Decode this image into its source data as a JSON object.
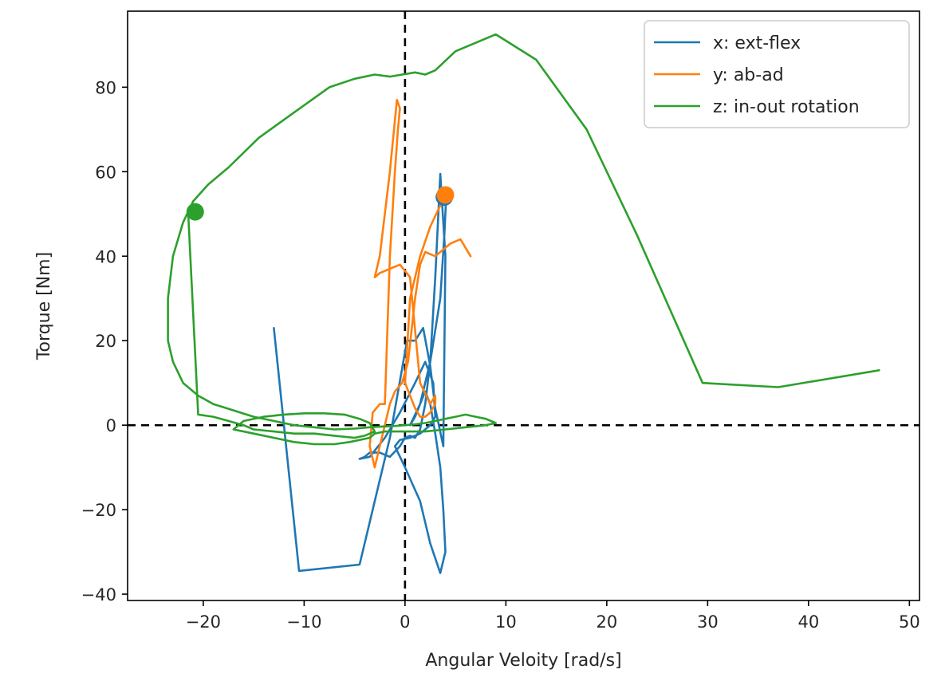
{
  "chart_data": {
    "type": "line",
    "title": "",
    "xlabel": "Angular Veloity [rad/s]",
    "ylabel": "Torque [Nm]",
    "xlim": [
      -27.5,
      51.0
    ],
    "ylim": [
      -41.5,
      98.0
    ],
    "xticks": [
      -20,
      -10,
      0,
      10,
      20,
      30,
      40,
      50
    ],
    "yticks": [
      -40,
      -20,
      0,
      20,
      40,
      60,
      80
    ],
    "xtick_labels": [
      "−20",
      "−10",
      "0",
      "10",
      "20",
      "30",
      "40",
      "50"
    ],
    "ytick_labels": [
      "−40",
      "−20",
      "0",
      "20",
      "40",
      "60",
      "80"
    ],
    "grid": false,
    "legend_position": "top-right",
    "reference_lines": [
      {
        "orientation": "horizontal",
        "value": 0,
        "style": "dashed",
        "color": "#000000"
      },
      {
        "orientation": "vertical",
        "value": 0,
        "style": "dashed",
        "color": "#000000"
      }
    ],
    "series": [
      {
        "name": "x: ext-flex",
        "color": "#1f77b4",
        "x": [
          -13.0,
          -10.5,
          -4.5,
          -1.5,
          0.2,
          1.0,
          1.8,
          2.5,
          3.0,
          3.8,
          4.0,
          3.5,
          3.0,
          2.5,
          2.0,
          1.5,
          1.0,
          0.5,
          0.0,
          -0.5,
          -1.5,
          -2.5,
          -3.5,
          -4.0,
          -4.5,
          -3.5,
          -2.0,
          -0.5,
          1.0,
          2.0,
          2.8,
          3.0,
          2.5,
          1.5,
          0.5,
          -0.5,
          -1.0,
          0.0,
          1.5,
          2.5,
          3.5,
          4.0,
          3.8,
          3.5,
          3.0,
          2.5,
          2.0,
          1.5,
          1.0,
          0.5,
          1.5,
          2.5,
          3.5,
          3.9,
          4.1,
          4.0,
          3.8,
          3.9
        ],
        "y": [
          23.0,
          -34.5,
          -33.0,
          -3.0,
          20.0,
          20.0,
          23.0,
          14.0,
          4.0,
          -5.0,
          40.0,
          59.5,
          35.0,
          15.0,
          5.0,
          -1.0,
          -3.0,
          -2.5,
          -3.0,
          -5.0,
          -7.5,
          -6.5,
          -6.5,
          -7.5,
          -8.0,
          -7.5,
          -3.0,
          3.0,
          10.0,
          15.0,
          10.0,
          2.0,
          0.0,
          -2.0,
          -3.0,
          -3.5,
          -5.0,
          -10.0,
          -18.0,
          -28.0,
          -35.0,
          -30.0,
          -20.0,
          -10.0,
          -2.0,
          5.0,
          8.0,
          5.0,
          2.0,
          0.0,
          5.0,
          15.0,
          30.0,
          45.0,
          55.0,
          52.0,
          56.0,
          54.0
        ]
      },
      {
        "name": "y: ab-ad",
        "color": "#ff7f0e",
        "x": [
          6.5,
          5.5,
          4.5,
          3.0,
          2.0,
          1.5,
          1.0,
          0.3,
          -0.3,
          -1.0,
          -1.5,
          -2.0,
          -2.5,
          -3.0,
          -3.5,
          -3.2,
          -2.5,
          -2.0,
          -1.5,
          -1.0,
          -0.7,
          -0.5,
          -0.8,
          -1.5,
          -2.5,
          -3.0,
          -2.5,
          -1.5,
          -0.5,
          0.5,
          1.5,
          2.5,
          3.0,
          3.0,
          2.5,
          2.0,
          1.5,
          1.0,
          0.5,
          0.0,
          0.5,
          1.5,
          2.5,
          3.5,
          4.0
        ],
        "y": [
          40.0,
          44.0,
          43.0,
          40.0,
          41.0,
          38.0,
          30.0,
          15.0,
          10.0,
          8.0,
          5.0,
          0.0,
          -5.0,
          -10.0,
          -5.0,
          3.0,
          5.0,
          5.0,
          40.0,
          60.0,
          70.0,
          75.0,
          77.0,
          60.0,
          40.0,
          35.0,
          36.0,
          37.0,
          38.0,
          35.0,
          10.0,
          5.0,
          7.0,
          5.0,
          3.0,
          2.0,
          2.0,
          4.0,
          7.0,
          10.0,
          30.0,
          40.0,
          47.0,
          52.0,
          54.5
        ]
      },
      {
        "name": "z: in-out rotation",
        "color": "#2ca02c",
        "x": [
          47.0,
          37.0,
          29.5,
          23.0,
          18.0,
          13.0,
          9.0,
          5.0,
          3.0,
          2.0,
          1.0,
          -1.5,
          -3.0,
          -5.0,
          -7.5,
          -11.0,
          -14.5,
          -17.5,
          -19.5,
          -21.0,
          -22.0,
          -23.0,
          -23.5,
          -23.5,
          -23.0,
          -22.0,
          -20.5,
          -19.0,
          -17.0,
          -15.0,
          -13.0,
          -11.0,
          -9.0,
          -7.0,
          -5.0,
          -3.5,
          -2.0,
          -1.0,
          0.0,
          1.0,
          2.0,
          3.0,
          4.0,
          5.0,
          6.0,
          7.0,
          8.0,
          9.0,
          8.0,
          6.0,
          4.0,
          2.0,
          0.0,
          -2.0,
          -3.0,
          -3.5,
          -4.5,
          -5.5,
          -7.0,
          -9.0,
          -11.0,
          -13.0,
          -15.0,
          -17.0,
          -16.0,
          -14.0,
          -12.0,
          -10.0,
          -8.0,
          -6.0,
          -4.5,
          -3.5,
          -3.0,
          -4.0,
          -5.0,
          -7.0,
          -9.0,
          -11.0,
          -13.0,
          -15.0,
          -16.0,
          -17.5,
          -19.0,
          -20.5,
          -21.5
        ],
        "y": [
          13.0,
          9.0,
          10.0,
          45.0,
          70.0,
          86.5,
          92.5,
          88.5,
          84.0,
          83.0,
          83.5,
          82.5,
          83.0,
          82.0,
          80.0,
          74.0,
          68.0,
          61.0,
          57.0,
          53.0,
          48.0,
          40.0,
          30.0,
          20.0,
          15.0,
          10.0,
          7.0,
          5.0,
          3.5,
          2.0,
          1.0,
          0.0,
          -0.5,
          -1.0,
          -0.8,
          -0.5,
          -0.3,
          -0.2,
          0.0,
          0.2,
          0.5,
          1.0,
          1.5,
          2.0,
          2.5,
          2.0,
          1.5,
          0.5,
          0.0,
          -0.5,
          -1.0,
          -1.5,
          -1.5,
          -1.5,
          -2.0,
          -3.0,
          -3.5,
          -4.0,
          -4.5,
          -4.5,
          -4.0,
          -3.0,
          -2.0,
          -1.0,
          1.0,
          2.0,
          2.5,
          2.8,
          2.8,
          2.5,
          1.5,
          0.5,
          -1.5,
          -2.5,
          -3.0,
          -2.5,
          -2.0,
          -2.0,
          -1.5,
          -1.0,
          0.0,
          1.0,
          2.0,
          2.5,
          50.5
        ]
      }
    ],
    "markers": [
      {
        "series": "x: ext-flex",
        "x": 3.9,
        "y": 54.0,
        "color": "#1f77b4"
      },
      {
        "series": "y: ab-ad",
        "x": 4.0,
        "y": 54.5,
        "color": "#ff7f0e"
      },
      {
        "series": "z: in-out rotation",
        "x": -20.8,
        "y": 50.5,
        "color": "#2ca02c"
      }
    ]
  }
}
